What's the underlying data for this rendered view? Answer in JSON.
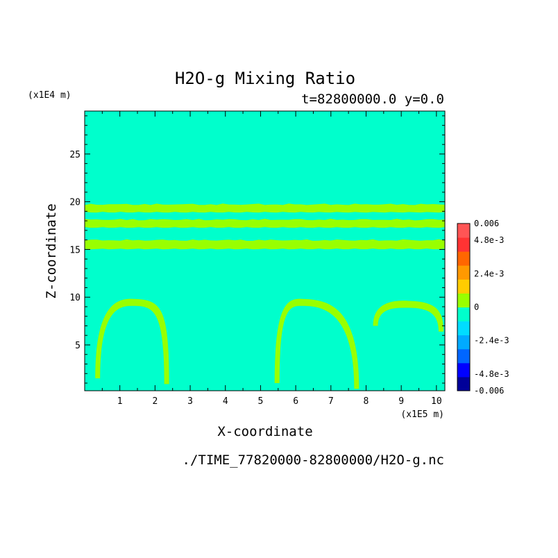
{
  "chart_data": {
    "type": "heatmap",
    "title": "H2O-g Mixing Ratio",
    "subtitle": "t=82800000.0 y=0.0",
    "xlabel": "X-coordinate",
    "ylabel": "Z-coordinate",
    "x_unit": "(x1E5 m)",
    "y_unit": "(x1E4 m)",
    "footer": "./TIME_77820000-82800000/H2O-g.nc",
    "xlim": [
      0,
      10.24
    ],
    "ylim": [
      0.2,
      29.5
    ],
    "x_ticks": [
      1,
      2,
      3,
      4,
      5,
      6,
      7,
      8,
      9,
      10
    ],
    "x_tick_labels": [
      "1",
      "2",
      "3",
      "4",
      "5",
      "6",
      "7",
      "8",
      "9",
      "10"
    ],
    "y_ticks": [
      5,
      10,
      15,
      20,
      25
    ],
    "y_tick_labels": [
      "5",
      "10",
      "15",
      "20",
      "25"
    ],
    "background_level_color": "#00ffcc",
    "feature_color": "#99ff00",
    "colorbar": {
      "min": -0.006,
      "max": 0.006,
      "colors": [
        "#000099",
        "#0000ff",
        "#0066ff",
        "#00aaff",
        "#00ddff",
        "#00ffcc",
        "#99ff00",
        "#ffcc00",
        "#ff9900",
        "#ff6600",
        "#ff3333",
        "#ff5555"
      ],
      "labels": [
        {
          "value": 0.006,
          "text": "0.006"
        },
        {
          "value": 0.0048,
          "text": "4.8e-3"
        },
        {
          "value": 0.0024,
          "text": "2.4e-3"
        },
        {
          "value": 0,
          "text": "0"
        },
        {
          "value": -0.0024,
          "text": "-2.4e-3"
        },
        {
          "value": -0.0048,
          "text": "-4.8e-3"
        },
        {
          "value": -0.006,
          "text": "-0.006"
        }
      ]
    },
    "bands": [
      {
        "name": "upper-band-top",
        "x0": 0.0,
        "x1": 10.24,
        "z_center": 19.3,
        "z_half": 0.35
      },
      {
        "name": "upper-band-bottom",
        "x0": 0.0,
        "x1": 10.24,
        "z_center": 17.7,
        "z_half": 0.35
      },
      {
        "name": "middle-band",
        "x0": 0.0,
        "x1": 10.24,
        "z_center": 15.5,
        "z_half": 0.4
      }
    ],
    "arches": [
      {
        "name": "arch-left",
        "x_start": 0.3,
        "x_peak": 1.4,
        "x_end": 2.4,
        "z_peak": 9.6,
        "z_base": 1.5
      },
      {
        "name": "arch-center",
        "x_start": 5.4,
        "x_peak": 6.2,
        "x_end": 7.8,
        "z_peak": 9.6,
        "z_base": 1.0
      },
      {
        "name": "arch-right",
        "x_start": 8.2,
        "x_peak": 9.2,
        "x_end": 10.2,
        "z_peak": 9.4,
        "z_base": 7.0
      }
    ]
  }
}
